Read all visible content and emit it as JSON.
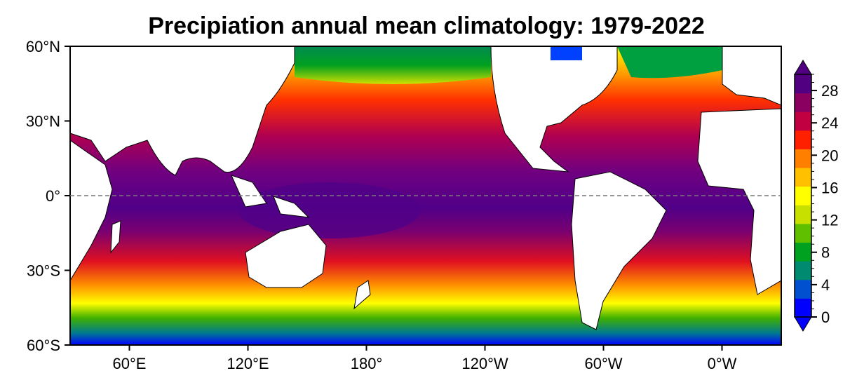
{
  "title": "Precipiation annual mean climatology: 1979-2022",
  "map": {
    "lon_range": [
      30,
      390
    ],
    "lat_range": [
      -60,
      60
    ],
    "equator_line": "dashed",
    "lon_ticks": [
      {
        "lon": 60,
        "label": "60°E"
      },
      {
        "lon": 120,
        "label": "120°E"
      },
      {
        "lon": 180,
        "label": "180°"
      },
      {
        "lon": 240,
        "label": "120°W"
      },
      {
        "lon": 300,
        "label": "60°W"
      },
      {
        "lon": 360,
        "label": "0°W"
      }
    ],
    "lat_ticks": [
      {
        "lat": 60,
        "label": "60°N"
      },
      {
        "lat": 30,
        "label": "30°N"
      },
      {
        "lat": 0,
        "label": "0°"
      },
      {
        "lat": -30,
        "label": "30°S"
      },
      {
        "lat": -60,
        "label": "60°S"
      }
    ]
  },
  "colorbar": {
    "min": 0,
    "max": 30,
    "extend": "both",
    "tick_labels": [
      "0",
      "4",
      "8",
      "12",
      "16",
      "20",
      "24",
      "28"
    ],
    "colors": [
      "#0000ff",
      "#0050d0",
      "#008a70",
      "#00a020",
      "#60c000",
      "#c8e000",
      "#ffff00",
      "#ffc000",
      "#ff8000",
      "#ff2000",
      "#c00040",
      "#8a0060",
      "#500080"
    ]
  }
}
